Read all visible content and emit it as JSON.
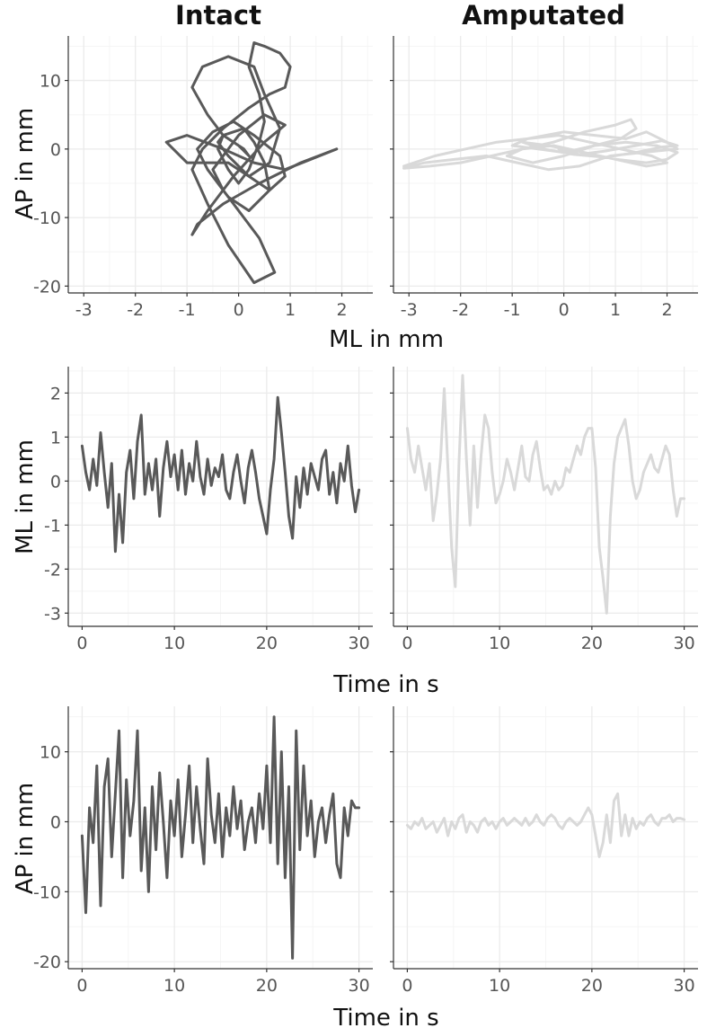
{
  "column_titles": {
    "left": "Intact",
    "right": "Amputated"
  },
  "colors": {
    "intact": "#595959",
    "amputated": "#d9d9d9",
    "grid_major": "#ebebeb",
    "grid_minor": "#f5f5f5",
    "axis": "#333333"
  },
  "chart_data": [
    {
      "id": "intact-stabilogram",
      "type": "line",
      "subject": "Intact",
      "xlabel": "ML in mm",
      "ylabel": "AP in mm",
      "xlim": [
        -3.3,
        2.6
      ],
      "ylim": [
        -21,
        16.5
      ],
      "xticks": [
        -3,
        -2,
        -1,
        0,
        1,
        2
      ],
      "yticks": [
        -20,
        -10,
        0,
        10
      ],
      "grid": true,
      "x": [
        0.1,
        -0.3,
        -0.6,
        -0.9,
        -0.7,
        -0.2,
        0.3,
        0.5,
        0.8,
        0.6,
        0.2,
        -0.2,
        -1.0,
        -1.4,
        -1.0,
        -0.3,
        0.3,
        0.9,
        1.9,
        1.2,
        0.4,
        -0.3,
        -0.8,
        -0.9,
        -0.6,
        -0.1,
        0.5,
        0.9,
        0.5,
        0.0,
        -0.3,
        -0.5,
        -0.3,
        0.1,
        0.4,
        0.7,
        0.3,
        -0.2,
        -0.6,
        -0.9,
        -0.7,
        -0.3,
        0.2,
        0.6,
        0.9,
        1.0,
        0.8,
        0.5,
        0.3,
        0.2,
        0.4,
        0.5,
        0.4,
        0.2,
        0.0,
        -0.2,
        -0.4,
        -0.3,
        0.1,
        0.3,
        0.5,
        0.6,
        0.2,
        -0.2,
        -0.6,
        -0.8,
        -0.5,
        -0.1,
        0.3,
        0.8,
        0.9,
        0.6,
        0.2,
        -0.2,
        -0.4,
        -0.3,
        0.0,
        0.2,
        0.1
      ],
      "y": [
        0.0,
        2.0,
        5.0,
        9.0,
        12.0,
        13.5,
        12.0,
        8.0,
        3.0,
        -2.0,
        -4.0,
        -2.0,
        -2.0,
        1.0,
        2.0,
        0.0,
        -2.0,
        -3.0,
        0.0,
        -2.0,
        -5.0,
        -8.0,
        -11.0,
        -12.5,
        -9.0,
        -4.0,
        1.0,
        3.5,
        5.0,
        2.0,
        -1.0,
        -3.0,
        -6.0,
        -10.0,
        -13.0,
        -18.0,
        -19.5,
        -14.0,
        -8.0,
        -3.0,
        0.0,
        3.0,
        6.0,
        8.0,
        9.0,
        12.0,
        14.0,
        15.0,
        15.5,
        12.0,
        8.0,
        4.0,
        1.0,
        -3.0,
        -5.0,
        -3.0,
        0.0,
        2.0,
        3.0,
        1.0,
        -2.0,
        -6.0,
        -9.0,
        -7.0,
        -3.0,
        0.0,
        2.5,
        4.0,
        2.0,
        -1.0,
        -4.0,
        -6.0,
        -4.0,
        -1.0,
        1.0,
        2.0,
        0.5,
        -1.0,
        0.0
      ]
    },
    {
      "id": "amputated-stabilogram",
      "type": "line",
      "subject": "Amputated",
      "xlabel": "",
      "ylabel": "",
      "xlim": [
        -3.3,
        2.6
      ],
      "ylim": [
        -21,
        16.5
      ],
      "xticks": [
        -3,
        -2,
        -1,
        0,
        1,
        2
      ],
      "yticks": [
        -20,
        -10,
        0,
        10
      ],
      "grid": true,
      "x": [
        -3.1,
        -2.5,
        -1.9,
        -1.3,
        -0.7,
        0.0,
        0.6,
        1.2,
        1.6,
        2.0,
        2.2,
        1.5,
        0.9,
        0.3,
        -0.3,
        -0.9,
        -1.5,
        -2.1,
        -2.7,
        -3.1,
        -2.6,
        -2.0,
        -1.4,
        -0.8,
        -0.2,
        0.4,
        1.0,
        1.3,
        1.4,
        1.1,
        0.6,
        0.0,
        -0.6,
        -1.1,
        -0.8,
        -0.2,
        0.4,
        1.0,
        1.6,
        2.0,
        2.2,
        1.8,
        1.2,
        0.6,
        0.0,
        -0.5,
        -1.0,
        -0.7,
        -0.1,
        0.5,
        1.1,
        1.7,
        2.0,
        1.6,
        1.0,
        0.4,
        -0.3,
        -0.8,
        -0.4,
        0.2,
        0.8,
        1.4,
        1.9,
        2.2,
        1.9,
        1.4,
        0.8,
        0.3,
        -0.1
      ],
      "y": [
        -2.5,
        -1.0,
        0.0,
        1.0,
        1.5,
        2.5,
        2.0,
        1.5,
        2.5,
        1.0,
        0.0,
        -0.5,
        -1.0,
        -2.5,
        -3.0,
        -2.0,
        -1.0,
        -1.5,
        -2.0,
        -2.8,
        -2.5,
        -2.0,
        -1.0,
        0.0,
        1.0,
        2.5,
        3.5,
        4.3,
        3.0,
        1.5,
        0.5,
        -1.0,
        -2.0,
        -1.0,
        0.0,
        0.5,
        -0.5,
        -1.5,
        -2.0,
        -1.5,
        -0.5,
        0.5,
        1.0,
        0.5,
        -0.5,
        0.0,
        0.5,
        1.5,
        2.0,
        1.0,
        0.0,
        -1.0,
        -2.0,
        -2.5,
        -1.5,
        -0.5,
        0.5,
        1.0,
        0.0,
        -0.8,
        -1.2,
        -0.5,
        0.3,
        0.5,
        1.2,
        0.5,
        -0.3,
        -0.8,
        0.0
      ]
    },
    {
      "id": "intact-ml-time",
      "type": "line",
      "subject": "Intact",
      "xlabel": "Time in s",
      "ylabel": "ML in mm",
      "xlim": [
        -1.5,
        31.5
      ],
      "ylim": [
        -3.3,
        2.6
      ],
      "xticks": [
        0,
        10,
        20,
        30
      ],
      "yticks": [
        -3,
        -2,
        -1,
        0,
        1,
        2
      ],
      "grid": true,
      "x": [
        0,
        0.4,
        0.8,
        1.2,
        1.6,
        2.0,
        2.4,
        2.8,
        3.2,
        3.6,
        4.0,
        4.4,
        4.8,
        5.2,
        5.6,
        6.0,
        6.4,
        6.8,
        7.2,
        7.6,
        8.0,
        8.4,
        8.8,
        9.2,
        9.6,
        10.0,
        10.4,
        10.8,
        11.2,
        11.6,
        12.0,
        12.4,
        12.8,
        13.2,
        13.6,
        14.0,
        14.4,
        14.8,
        15.2,
        15.6,
        16.0,
        16.4,
        16.8,
        17.2,
        17.6,
        18.0,
        18.4,
        18.8,
        19.2,
        19.6,
        20.0,
        20.4,
        20.8,
        21.2,
        21.6,
        22.0,
        22.4,
        22.8,
        23.2,
        23.6,
        24.0,
        24.4,
        24.8,
        25.2,
        25.6,
        26.0,
        26.4,
        26.8,
        27.2,
        27.6,
        28.0,
        28.4,
        28.8,
        29.2,
        29.6,
        30.0
      ],
      "y": [
        0.8,
        0.2,
        -0.2,
        0.5,
        -0.1,
        1.1,
        0.2,
        -0.6,
        0.4,
        -1.6,
        -0.3,
        -1.4,
        0.2,
        0.7,
        -0.4,
        0.9,
        1.5,
        -0.3,
        0.4,
        -0.2,
        0.5,
        -0.8,
        0.3,
        0.9,
        0.1,
        0.6,
        -0.2,
        0.7,
        -0.3,
        0.4,
        0.0,
        0.9,
        0.1,
        -0.3,
        0.5,
        -0.1,
        0.3,
        0.1,
        0.6,
        -0.2,
        -0.4,
        0.2,
        0.6,
        0.0,
        -0.5,
        0.3,
        0.7,
        0.2,
        -0.4,
        -0.8,
        -1.2,
        -0.2,
        0.5,
        1.9,
        1.1,
        0.2,
        -0.8,
        -1.3,
        0.1,
        -0.6,
        0.3,
        -0.3,
        0.4,
        0.1,
        -0.2,
        0.5,
        0.7,
        -0.3,
        0.2,
        -0.5,
        0.4,
        0.0,
        0.8,
        -0.1,
        -0.7,
        -0.2
      ]
    },
    {
      "id": "amputated-ml-time",
      "type": "line",
      "subject": "Amputated",
      "xlabel": "",
      "ylabel": "",
      "xlim": [
        -1.5,
        31.5
      ],
      "ylim": [
        -3.3,
        2.6
      ],
      "xticks": [
        0,
        10,
        20,
        30
      ],
      "yticks": [
        -3,
        -2,
        -1,
        0,
        1,
        2
      ],
      "grid": true,
      "x": [
        0,
        0.4,
        0.8,
        1.2,
        1.6,
        2.0,
        2.4,
        2.8,
        3.2,
        3.6,
        4.0,
        4.4,
        4.8,
        5.2,
        5.6,
        6.0,
        6.4,
        6.8,
        7.2,
        7.6,
        8.0,
        8.4,
        8.8,
        9.2,
        9.6,
        10.0,
        10.4,
        10.8,
        11.2,
        11.6,
        12.0,
        12.4,
        12.8,
        13.2,
        13.6,
        14.0,
        14.4,
        14.8,
        15.2,
        15.6,
        16.0,
        16.4,
        16.8,
        17.2,
        17.6,
        18.0,
        18.4,
        18.8,
        19.2,
        19.6,
        20.0,
        20.4,
        20.8,
        21.2,
        21.6,
        22.0,
        22.4,
        22.8,
        23.2,
        23.6,
        24.0,
        24.4,
        24.8,
        25.2,
        25.6,
        26.0,
        26.4,
        26.8,
        27.2,
        27.6,
        28.0,
        28.4,
        28.8,
        29.2,
        29.6,
        30.0
      ],
      "y": [
        1.2,
        0.5,
        0.2,
        0.8,
        0.3,
        -0.2,
        0.4,
        -0.9,
        -0.3,
        0.5,
        2.1,
        0.3,
        -1.5,
        -2.4,
        0.4,
        2.4,
        0.5,
        -1.0,
        0.8,
        -0.6,
        0.6,
        1.5,
        1.2,
        0.2,
        -0.5,
        -0.3,
        0.0,
        0.5,
        0.2,
        -0.2,
        0.3,
        0.8,
        0.1,
        0.0,
        0.6,
        0.9,
        0.3,
        -0.2,
        -0.1,
        -0.3,
        0.0,
        -0.2,
        -0.1,
        0.3,
        0.2,
        0.5,
        0.8,
        0.6,
        1.0,
        1.2,
        1.2,
        0.3,
        -1.5,
        -2.2,
        -3.0,
        -0.8,
        0.4,
        1.0,
        1.2,
        1.4,
        0.8,
        0.0,
        -0.4,
        -0.2,
        0.2,
        0.4,
        0.6,
        0.3,
        0.2,
        0.5,
        0.8,
        0.6,
        -0.2,
        -0.8,
        -0.4,
        -0.4
      ]
    },
    {
      "id": "intact-ap-time",
      "type": "line",
      "subject": "Intact",
      "xlabel": "Time in s",
      "ylabel": "AP in mm",
      "xlim": [
        -1.5,
        31.5
      ],
      "ylim": [
        -21,
        16.5
      ],
      "xticks": [
        0,
        10,
        20,
        30
      ],
      "yticks": [
        -20,
        -10,
        0,
        10
      ],
      "grid": true,
      "x": [
        0,
        0.4,
        0.8,
        1.2,
        1.6,
        2.0,
        2.4,
        2.8,
        3.2,
        3.6,
        4.0,
        4.4,
        4.8,
        5.2,
        5.6,
        6.0,
        6.4,
        6.8,
        7.2,
        7.6,
        8.0,
        8.4,
        8.8,
        9.2,
        9.6,
        10.0,
        10.4,
        10.8,
        11.2,
        11.6,
        12.0,
        12.4,
        12.8,
        13.2,
        13.6,
        14.0,
        14.4,
        14.8,
        15.2,
        15.6,
        16.0,
        16.4,
        16.8,
        17.2,
        17.6,
        18.0,
        18.4,
        18.8,
        19.2,
        19.6,
        20.0,
        20.4,
        20.8,
        21.2,
        21.6,
        22.0,
        22.4,
        22.8,
        23.2,
        23.6,
        24.0,
        24.4,
        24.8,
        25.2,
        25.6,
        26.0,
        26.4,
        26.8,
        27.2,
        27.6,
        28.0,
        28.4,
        28.8,
        29.2,
        29.6,
        30.0
      ],
      "y": [
        -2.0,
        -13.0,
        2.0,
        -3.0,
        8.0,
        -12.0,
        5.0,
        9.0,
        -5.0,
        4.0,
        13.0,
        -8.0,
        6.0,
        -2.0,
        3.0,
        13.0,
        -7.0,
        2.0,
        -10.0,
        5.0,
        -4.0,
        7.0,
        0.0,
        -8.0,
        3.0,
        -2.0,
        6.0,
        -5.0,
        1.0,
        8.0,
        -3.0,
        5.0,
        -1.0,
        -6.0,
        9.0,
        1.0,
        -3.0,
        4.0,
        -5.0,
        2.0,
        -2.0,
        5.0,
        -1.0,
        3.0,
        -4.0,
        0.0,
        2.0,
        -3.0,
        4.0,
        -1.0,
        8.0,
        -3.0,
        15.0,
        -6.0,
        10.0,
        -8.0,
        5.0,
        -19.5,
        13.0,
        -4.0,
        8.0,
        -2.0,
        3.0,
        -5.0,
        0.0,
        2.0,
        -3.0,
        1.0,
        4.0,
        -6.0,
        -8.0,
        2.0,
        -2.0,
        3.0,
        2.0,
        2.0
      ]
    },
    {
      "id": "amputated-ap-time",
      "type": "line",
      "subject": "Amputated",
      "xlabel": "",
      "ylabel": "",
      "xlim": [
        -1.5,
        31.5
      ],
      "ylim": [
        -21,
        16.5
      ],
      "xticks": [
        0,
        10,
        20,
        30
      ],
      "yticks": [
        -20,
        -10,
        0,
        10
      ],
      "grid": true,
      "x": [
        0,
        0.4,
        0.8,
        1.2,
        1.6,
        2.0,
        2.4,
        2.8,
        3.2,
        3.6,
        4.0,
        4.4,
        4.8,
        5.2,
        5.6,
        6.0,
        6.4,
        6.8,
        7.2,
        7.6,
        8.0,
        8.4,
        8.8,
        9.2,
        9.6,
        10.0,
        10.4,
        10.8,
        11.2,
        11.6,
        12.0,
        12.4,
        12.8,
        13.2,
        13.6,
        14.0,
        14.4,
        14.8,
        15.2,
        15.6,
        16.0,
        16.4,
        16.8,
        17.2,
        17.6,
        18.0,
        18.4,
        18.8,
        19.2,
        19.6,
        20.0,
        20.4,
        20.8,
        21.2,
        21.6,
        22.0,
        22.4,
        22.8,
        23.2,
        23.6,
        24.0,
        24.4,
        24.8,
        25.2,
        25.6,
        26.0,
        26.4,
        26.8,
        27.2,
        27.6,
        28.0,
        28.4,
        28.8,
        29.2,
        29.6,
        30.0
      ],
      "y": [
        -0.5,
        -1.0,
        0.0,
        -0.5,
        0.5,
        -1.0,
        -0.5,
        0.0,
        -1.5,
        -0.5,
        0.5,
        -2.0,
        0.0,
        -1.0,
        0.5,
        1.0,
        -1.5,
        0.0,
        -0.5,
        -1.5,
        0.0,
        0.5,
        -0.5,
        0.0,
        -1.0,
        0.0,
        0.5,
        -0.5,
        0.0,
        0.5,
        0.0,
        -0.5,
        0.5,
        -0.5,
        0.0,
        1.0,
        0.0,
        -0.5,
        0.5,
        1.0,
        0.5,
        -0.5,
        -1.0,
        0.0,
        0.5,
        0.0,
        -0.5,
        0.0,
        1.0,
        2.0,
        1.0,
        -2.0,
        -5.0,
        -3.0,
        1.0,
        -3.0,
        3.0,
        4.0,
        -2.0,
        1.0,
        -2.0,
        0.5,
        -1.0,
        0.0,
        -0.5,
        0.5,
        1.0,
        0.0,
        -0.5,
        0.5,
        0.5,
        1.0,
        0.0,
        0.5,
        0.5,
        0.3
      ]
    }
  ]
}
